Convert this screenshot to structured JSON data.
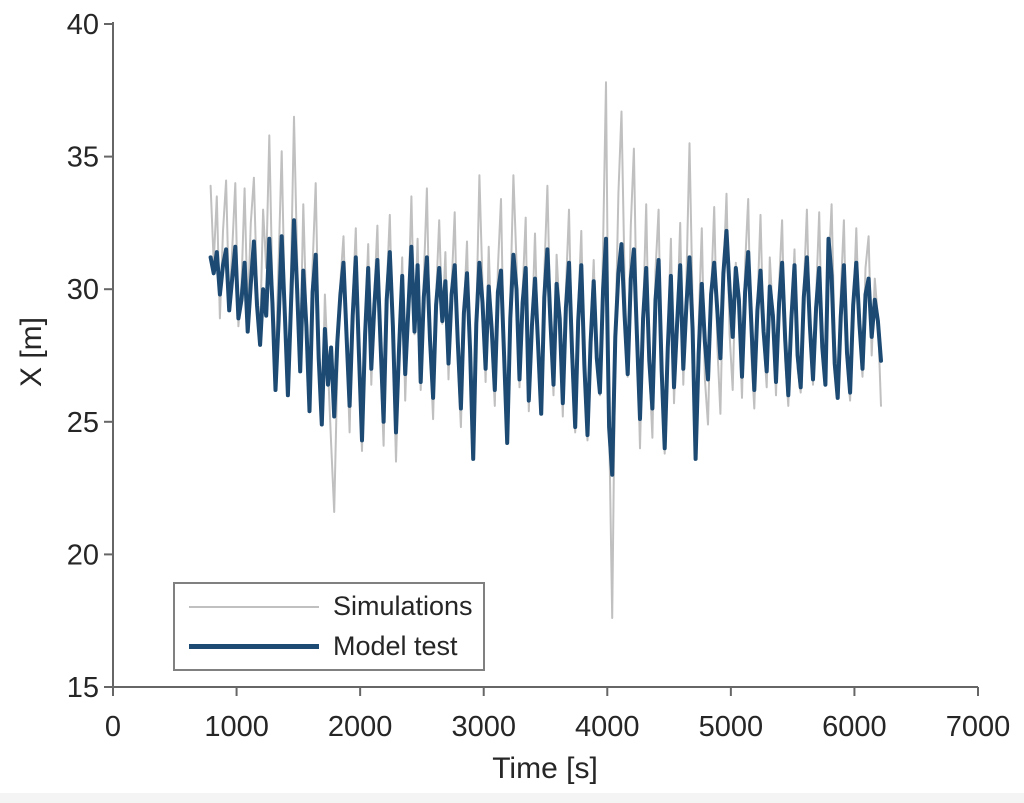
{
  "chart_data": {
    "type": "line",
    "title": "",
    "xlabel": "Time [s]",
    "ylabel": "X [m]",
    "xlim": [
      0,
      7000
    ],
    "ylim": [
      15,
      40
    ],
    "x_ticks": [
      0,
      1000,
      2000,
      3000,
      4000,
      5000,
      6000,
      7000
    ],
    "y_ticks": [
      15,
      20,
      25,
      30,
      35,
      40
    ],
    "grid": false,
    "legend_position": "bottom-left",
    "x_start": 790,
    "x_step": 25,
    "axis_color": "#666666",
    "tick_label_color": "#262626",
    "series": [
      {
        "name": "Simulations",
        "color": "#c0c0c0",
        "line_width": 2,
        "values": [
          33.9,
          31.0,
          33.5,
          28.9,
          32.2,
          34.1,
          29.3,
          31.5,
          34.0,
          28.6,
          30.2,
          33.8,
          29.0,
          32.5,
          34.2,
          29.9,
          28.4,
          33.0,
          30.8,
          35.8,
          30.1,
          27.2,
          31.0,
          35.2,
          29.4,
          26.1,
          30.5,
          36.5,
          31.2,
          27.5,
          33.2,
          29.0,
          25.9,
          30.9,
          34.0,
          28.2,
          25.0,
          29.8,
          27.0,
          24.2,
          21.6,
          26.8,
          30.3,
          32.0,
          28.1,
          24.6,
          29.5,
          32.3,
          27.0,
          23.9,
          28.6,
          31.7,
          26.4,
          29.9,
          32.4,
          27.3,
          24.1,
          30.0,
          32.8,
          28.0,
          23.5,
          27.6,
          31.2,
          25.8,
          29.4,
          33.5,
          28.3,
          31.9,
          26.2,
          30.4,
          33.8,
          27.8,
          25.1,
          29.7,
          32.6,
          28.7,
          31.4,
          26.6,
          30.1,
          32.9,
          27.4,
          24.8,
          29.2,
          31.8,
          26.9,
          23.9,
          28.9,
          34.3,
          30.2,
          26.5,
          31.6,
          28.0,
          25.6,
          30.8,
          33.4,
          27.1,
          24.9,
          29.6,
          34.3,
          31.0,
          26.3,
          29.9,
          32.7,
          25.4,
          28.5,
          32.1,
          27.7,
          25.5,
          30.6,
          33.9,
          28.8,
          26.0,
          31.3,
          29.1,
          25.2,
          30.0,
          33.0,
          27.5,
          24.6,
          29.3,
          32.2,
          26.8,
          24.3,
          28.4,
          31.1,
          27.2,
          26.0,
          31.5,
          37.8,
          25.0,
          17.6,
          27.9,
          33.6,
          36.7,
          30.4,
          26.7,
          32.4,
          35.3,
          28.6,
          24.0,
          29.0,
          33.2,
          27.0,
          24.4,
          30.7,
          33.0,
          26.1,
          23.8,
          28.2,
          31.9,
          25.7,
          28.9,
          32.5,
          26.4,
          30.3,
          35.5,
          29.5,
          24.5,
          28.7,
          32.3,
          26.6,
          24.9,
          29.8,
          33.1,
          27.9,
          25.3,
          30.5,
          33.6,
          28.3,
          26.2,
          31.0,
          29.2,
          25.9,
          30.9,
          33.4,
          27.6,
          25.5,
          29.4,
          32.8,
          28.1,
          26.3,
          31.2,
          29.0,
          26.0,
          30.2,
          32.6,
          27.3,
          25.6,
          28.8,
          31.5,
          27.0,
          26.1,
          30.0,
          33.0,
          28.5,
          26.4,
          29.7,
          32.9,
          27.7,
          26.5,
          30.6,
          33.2,
          28.0,
          26.6,
          29.9,
          32.6,
          27.2,
          25.8,
          29.1,
          32.3,
          28.4,
          26.7,
          30.8,
          32.0,
          27.5,
          30.4,
          28.9,
          25.6
        ]
      },
      {
        "name": "Model test",
        "color": "#1c4a73",
        "line_width": 4,
        "values": [
          31.2,
          30.6,
          31.4,
          29.8,
          30.9,
          31.5,
          29.2,
          30.4,
          31.6,
          28.9,
          29.6,
          31.0,
          28.4,
          30.2,
          31.8,
          29.4,
          27.9,
          30.0,
          29.0,
          31.9,
          29.5,
          26.2,
          28.8,
          32.0,
          29.1,
          26.0,
          29.3,
          32.6,
          30.0,
          26.9,
          30.7,
          28.6,
          25.4,
          29.9,
          31.3,
          27.4,
          24.9,
          28.5,
          26.4,
          27.8,
          25.2,
          28.0,
          29.8,
          31.0,
          28.2,
          25.6,
          29.0,
          31.2,
          27.6,
          24.3,
          28.3,
          30.8,
          27.0,
          29.4,
          31.1,
          28.0,
          25.0,
          29.6,
          31.4,
          28.6,
          24.6,
          27.8,
          30.5,
          26.8,
          29.2,
          31.6,
          28.4,
          30.9,
          26.5,
          29.7,
          31.2,
          28.1,
          25.9,
          29.4,
          30.8,
          28.8,
          30.3,
          27.2,
          29.8,
          30.9,
          28.0,
          25.5,
          29.1,
          30.6,
          27.7,
          23.6,
          28.7,
          31.0,
          29.5,
          27.0,
          30.1,
          28.5,
          26.2,
          29.9,
          30.7,
          27.5,
          24.2,
          28.9,
          31.3,
          30.0,
          26.6,
          29.5,
          30.8,
          25.8,
          28.6,
          30.4,
          27.9,
          25.3,
          29.7,
          31.5,
          28.8,
          26.4,
          30.2,
          28.9,
          25.7,
          29.3,
          31.0,
          27.6,
          24.8,
          28.8,
          30.9,
          27.1,
          24.5,
          28.0,
          30.3,
          27.4,
          26.1,
          29.9,
          31.9,
          24.8,
          23.0,
          28.2,
          30.6,
          31.7,
          29.0,
          26.8,
          30.4,
          31.5,
          28.3,
          25.1,
          28.9,
          30.8,
          27.3,
          25.5,
          29.6,
          31.1,
          26.9,
          24.0,
          27.8,
          30.5,
          26.3,
          28.7,
          30.9,
          27.0,
          29.4,
          31.2,
          28.5,
          23.6,
          27.6,
          30.2,
          28.0,
          26.6,
          29.8,
          31.0,
          29.2,
          27.4,
          30.6,
          32.2,
          30.0,
          28.2,
          30.8,
          29.6,
          26.7,
          29.9,
          31.4,
          28.8,
          26.2,
          29.2,
          30.7,
          28.4,
          26.9,
          30.1,
          29.0,
          26.5,
          29.5,
          31.0,
          28.1,
          26.0,
          28.9,
          30.9,
          27.5,
          26.3,
          29.7,
          31.2,
          28.6,
          26.6,
          29.3,
          30.8,
          27.8,
          26.4,
          31.9,
          30.5,
          27.2,
          25.9,
          29.0,
          30.9,
          27.6,
          26.1,
          29.4,
          31.0,
          28.7,
          27.0,
          29.8,
          30.4,
          28.2,
          29.6,
          28.8,
          27.3
        ]
      }
    ]
  }
}
